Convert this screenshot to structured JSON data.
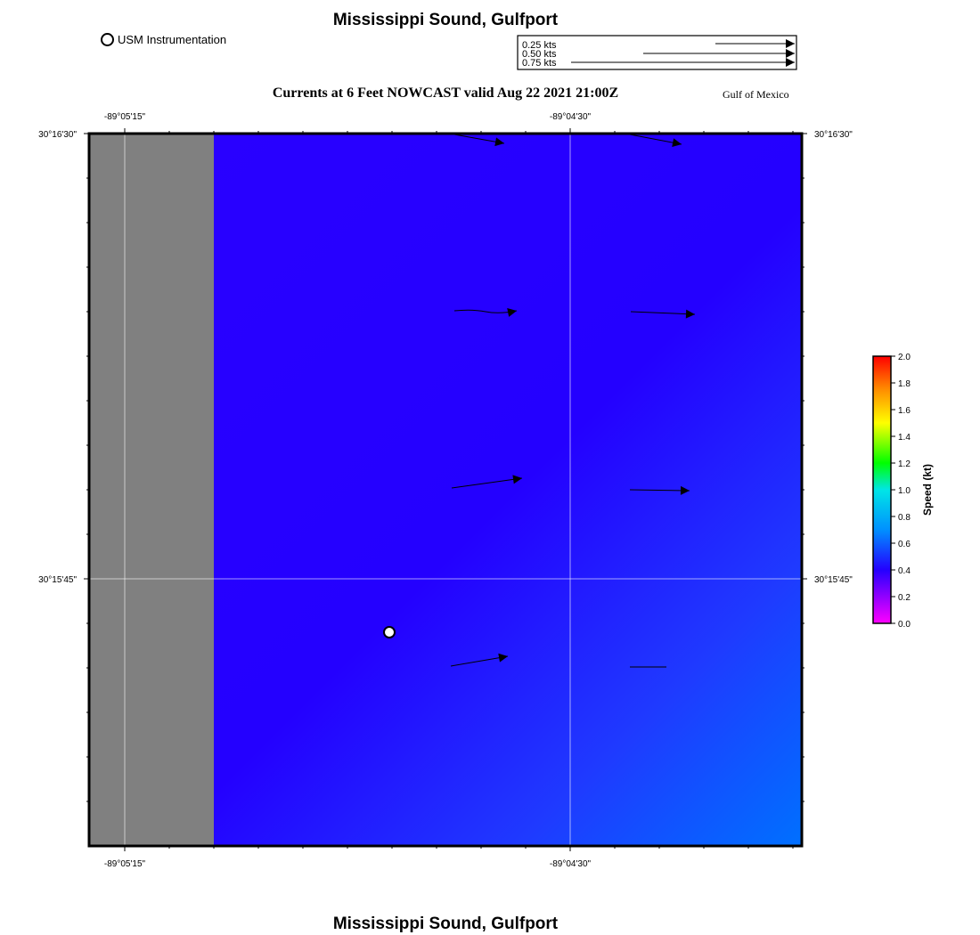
{
  "header": {
    "title": "Mississippi Sound, Gulfport",
    "map_title": "Currents at 6 Feet NOWCAST valid Aug 22 2021 21:00Z",
    "region_label": "Gulf of Mexico"
  },
  "footer": {
    "title": "Mississippi Sound, Gulfport"
  },
  "legend": {
    "station_label": "USM Instrumentation",
    "vector_scale": [
      "0.25 kts",
      "0.50 kts",
      "0.75 kts"
    ]
  },
  "axes": {
    "lon_labels": [
      "-89°05'15\"",
      "-89°04'30\""
    ],
    "lat_labels": [
      "30°16'30\"",
      "30°15'45\""
    ]
  },
  "colorbar": {
    "label": "Speed (kt)",
    "ticks": [
      "0.0",
      "0.2",
      "0.4",
      "0.6",
      "0.8",
      "1.0",
      "1.2",
      "1.4",
      "1.6",
      "1.8",
      "2.0"
    ]
  },
  "colors": {
    "land": "#808080",
    "water_low": "#2400ff",
    "water_high": "#0066ff"
  }
}
